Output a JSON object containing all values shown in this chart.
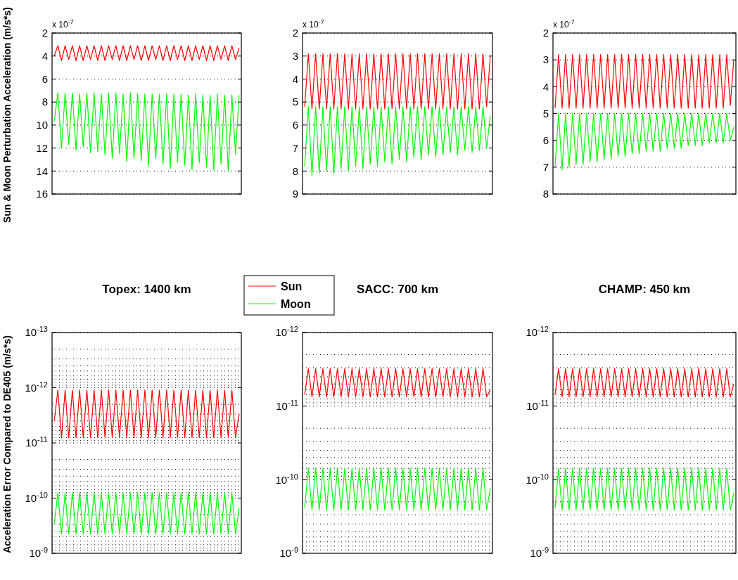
{
  "chart_data": [
    {
      "type": "line",
      "ylabel": "Sun & Moon Perturbation Acceleration (m/s*s)",
      "annotations": [
        "x 10$^{-7}$"
      ],
      "categories": [
        null,
        null,
        null,
        null,
        null,
        null,
        null,
        null,
        null,
        null,
        null,
        null,
        null,
        null,
        null,
        null,
        null,
        null,
        null,
        null,
        null,
        null,
        null,
        null,
        null,
        null,
        null,
        null,
        null,
        null,
        null,
        null,
        null,
        null,
        null,
        null,
        null,
        null,
        null,
        null,
        null,
        null,
        null,
        null,
        null,
        null,
        null,
        null,
        null,
        null,
        null,
        null
      ],
      "ylim": [
        16,
        2
      ],
      "yticks": [
        2,
        4,
        6,
        8,
        10,
        12,
        14,
        16
      ],
      "grid": "y",
      "tick_labels": "y",
      "series": [
        {
          "color": "#ff0000",
          "values": [
            4.0,
            3.1,
            4.4,
            3.1,
            4.3,
            3.1,
            4.4,
            3.1,
            4.4,
            3.1,
            4.3,
            3.1,
            4.4,
            3.1,
            4.4,
            3.1,
            4.3,
            3.1,
            4.4,
            3.1,
            4.4,
            3.1,
            4.3,
            3.1,
            4.4,
            3.1,
            4.4,
            3.1,
            4.3,
            3.1,
            4.4,
            3.1,
            4.4,
            3.1,
            4.3,
            3.1,
            4.4,
            3.1,
            4.4,
            3.1,
            4.3,
            3.1,
            4.4,
            3.1,
            4.4,
            3.1,
            4.3,
            3.1,
            4.4,
            3.1,
            4.3,
            3.3
          ]
        },
        {
          "color": "#00ff00",
          "values": [
            9.7,
            7.2,
            12.0,
            7.2,
            11.7,
            7.2,
            12.2,
            7.3,
            11.9,
            7.2,
            12.4,
            7.2,
            12.3,
            7.3,
            12.6,
            7.2,
            12.9,
            7.2,
            12.5,
            7.3,
            13.2,
            7.2,
            12.9,
            7.3,
            13.1,
            7.3,
            13.5,
            7.3,
            12.9,
            7.3,
            13.4,
            7.3,
            13.8,
            7.3,
            13.2,
            7.3,
            13.5,
            7.4,
            13.9,
            7.3,
            13.3,
            7.4,
            13.7,
            7.4,
            13.9,
            7.3,
            13.4,
            7.4,
            14.0,
            7.4,
            12.5,
            7.4
          ]
        }
      ]
    },
    {
      "type": "line",
      "annotations": [
        "x 10$^{-7}$"
      ],
      "categories": [
        null,
        null,
        null,
        null,
        null,
        null,
        null,
        null,
        null,
        null,
        null,
        null,
        null,
        null,
        null,
        null,
        null,
        null,
        null,
        null,
        null,
        null,
        null,
        null,
        null,
        null,
        null,
        null,
        null,
        null,
        null,
        null,
        null,
        null,
        null,
        null,
        null,
        null,
        null,
        null,
        null,
        null,
        null,
        null,
        null,
        null,
        null,
        null,
        null,
        null,
        null,
        null
      ],
      "ylim": [
        9,
        2
      ],
      "yticks": [
        2,
        3,
        4,
        5,
        6,
        7,
        8,
        9
      ],
      "grid": "y",
      "tick_labels": "y",
      "series": [
        {
          "color": "#ff0000",
          "values": [
            5.2,
            2.9,
            5.3,
            2.9,
            5.3,
            2.9,
            5.3,
            2.9,
            5.3,
            2.9,
            5.3,
            2.9,
            5.3,
            2.9,
            5.3,
            2.9,
            5.3,
            2.9,
            5.3,
            2.9,
            5.3,
            2.9,
            5.3,
            2.9,
            5.3,
            2.9,
            5.3,
            2.9,
            5.3,
            2.9,
            5.3,
            2.9,
            5.3,
            2.9,
            5.3,
            2.9,
            5.3,
            2.9,
            5.3,
            2.9,
            5.3,
            2.9,
            5.3,
            2.9,
            5.3,
            2.9,
            5.3,
            2.9,
            5.3,
            2.9,
            5.2,
            3.0
          ]
        },
        {
          "color": "#00ff00",
          "values": [
            7.8,
            5.2,
            8.2,
            5.2,
            8.1,
            5.2,
            8.0,
            5.2,
            8.1,
            5.2,
            7.9,
            5.2,
            8.0,
            5.2,
            7.8,
            5.2,
            7.9,
            5.2,
            7.7,
            5.2,
            7.8,
            5.2,
            7.6,
            5.2,
            7.7,
            5.2,
            7.5,
            5.2,
            7.6,
            5.2,
            7.4,
            5.2,
            7.5,
            5.2,
            7.3,
            5.2,
            7.4,
            5.2,
            7.3,
            5.2,
            7.2,
            5.2,
            7.3,
            5.2,
            7.1,
            5.2,
            7.2,
            5.2,
            7.1,
            5.2,
            7.0,
            5.6
          ]
        }
      ]
    },
    {
      "type": "line",
      "annotations": [
        "x 10$^{-7}$"
      ],
      "categories": [
        null,
        null,
        null,
        null,
        null,
        null,
        null,
        null,
        null,
        null,
        null,
        null,
        null,
        null,
        null,
        null,
        null,
        null,
        null,
        null,
        null,
        null,
        null,
        null,
        null,
        null,
        null,
        null,
        null,
        null,
        null,
        null,
        null,
        null,
        null,
        null,
        null,
        null,
        null,
        null,
        null,
        null,
        null,
        null,
        null,
        null,
        null,
        null,
        null,
        null,
        null,
        null
      ],
      "ylim": [
        8,
        2
      ],
      "yticks": [
        2,
        3,
        4,
        5,
        6,
        7,
        8
      ],
      "grid": "y",
      "tick_labels": "y",
      "series": [
        {
          "color": "#ff0000",
          "values": [
            4.8,
            2.8,
            4.8,
            2.8,
            4.8,
            2.8,
            4.8,
            2.8,
            4.8,
            2.8,
            4.8,
            2.8,
            4.8,
            2.8,
            4.8,
            2.8,
            4.8,
            2.8,
            4.8,
            2.8,
            4.8,
            2.8,
            4.8,
            2.8,
            4.8,
            2.8,
            4.8,
            2.8,
            4.8,
            2.8,
            4.8,
            2.8,
            4.8,
            2.8,
            4.8,
            2.8,
            4.8,
            2.8,
            4.8,
            2.8,
            4.8,
            2.8,
            4.8,
            2.8,
            4.8,
            2.8,
            4.8,
            2.8,
            4.8,
            2.8,
            4.7,
            3.0
          ]
        },
        {
          "color": "#00ff00",
          "values": [
            7.0,
            5.0,
            7.1,
            5.0,
            7.0,
            5.0,
            6.9,
            5.0,
            6.9,
            5.0,
            6.8,
            5.0,
            6.8,
            5.0,
            6.7,
            5.0,
            6.7,
            5.0,
            6.6,
            5.0,
            6.6,
            5.0,
            6.5,
            5.0,
            6.5,
            5.0,
            6.4,
            5.0,
            6.4,
            5.0,
            6.4,
            5.0,
            6.3,
            5.0,
            6.3,
            5.0,
            6.3,
            5.0,
            6.2,
            5.0,
            6.2,
            5.0,
            6.2,
            5.0,
            6.1,
            5.0,
            6.1,
            5.0,
            6.1,
            5.0,
            6.0,
            5.5
          ]
        }
      ]
    },
    {
      "type": "line",
      "title": "Topex: 1400 km",
      "ylabel": "Acceleration Error Compared to DE405 (m/s*s)",
      "legend": "top right",
      "log": "y",
      "categories": [
        null,
        null,
        null,
        null,
        null,
        null,
        null,
        null,
        null,
        null,
        null,
        null,
        null,
        null,
        null,
        null,
        null,
        null,
        null,
        null,
        null,
        null,
        null,
        null,
        null,
        null,
        null,
        null,
        null,
        null,
        null,
        null,
        null,
        null,
        null,
        null,
        null,
        null,
        null,
        null,
        null,
        null,
        null,
        null,
        null,
        null,
        null,
        null,
        null,
        null,
        null,
        null
      ],
      "ylim": [
        1e-09,
        1e-13
      ],
      "yticks": [
        {
          "value": 1e-13,
          "label": "10$^{-13}$"
        },
        {
          "value": 1e-12,
          "label": "10$^{-12}$"
        },
        {
          "value": 1e-11,
          "label": "10$^{-11}$"
        },
        {
          "value": 1e-10,
          "label": "10$^{-10}$"
        },
        {
          "value": 1e-09,
          "label": "10$^{-9}$"
        }
      ],
      "grid": "y",
      "tick_labels": "y",
      "series": [
        {
          "name": "Sun",
          "color": "#ff0000",
          "values": [
            4e-12,
            1.1e-12,
            8e-12,
            1.1e-12,
            8e-12,
            1.1e-12,
            8e-12,
            1.1e-12,
            8e-12,
            1.1e-12,
            8e-12,
            1.1e-12,
            8e-12,
            1.1e-12,
            8e-12,
            1.1e-12,
            8e-12,
            1.1e-12,
            8e-12,
            1.1e-12,
            8e-12,
            1.1e-12,
            8e-12,
            1.1e-12,
            8e-12,
            1.1e-12,
            8e-12,
            1.1e-12,
            8e-12,
            1.1e-12,
            8e-12,
            1.1e-12,
            8e-12,
            1.1e-12,
            8e-12,
            1.1e-12,
            8e-12,
            1.1e-12,
            8e-12,
            1.1e-12,
            8e-12,
            1.1e-12,
            8e-12,
            1.1e-12,
            8e-12,
            1.1e-12,
            8e-12,
            1.1e-12,
            8e-12,
            1.1e-12,
            8e-12,
            3e-12
          ]
        },
        {
          "name": "Moon",
          "color": "#00ff00",
          "values": [
            3e-10,
            8e-11,
            4.5e-10,
            8e-11,
            4.5e-10,
            8e-11,
            4.5e-10,
            8e-11,
            4.5e-10,
            8e-11,
            4.5e-10,
            8e-11,
            4.5e-10,
            8e-11,
            4.5e-10,
            8e-11,
            4.5e-10,
            8e-11,
            4.5e-10,
            8e-11,
            4.5e-10,
            8e-11,
            4.5e-10,
            8e-11,
            4.5e-10,
            8e-11,
            4.5e-10,
            8e-11,
            4.5e-10,
            8e-11,
            4.5e-10,
            8e-11,
            4.5e-10,
            8e-11,
            4.5e-10,
            8e-11,
            4.5e-10,
            8e-11,
            4.5e-10,
            8e-11,
            4.5e-10,
            8e-11,
            4.5e-10,
            8e-11,
            4.5e-10,
            8e-11,
            4.5e-10,
            8e-11,
            4.5e-10,
            8e-11,
            4.5e-10,
            1.5e-10
          ]
        }
      ]
    },
    {
      "type": "line",
      "title": "SACC: 700 km",
      "log": "y",
      "categories": [
        null,
        null,
        null,
        null,
        null,
        null,
        null,
        null,
        null,
        null,
        null,
        null,
        null,
        null,
        null,
        null,
        null,
        null,
        null,
        null,
        null,
        null,
        null,
        null,
        null,
        null,
        null,
        null,
        null,
        null,
        null,
        null,
        null,
        null,
        null,
        null,
        null,
        null,
        null,
        null,
        null,
        null,
        null,
        null,
        null,
        null,
        null,
        null,
        null,
        null,
        null,
        null
      ],
      "ylim": [
        1e-09,
        1e-12
      ],
      "yticks": [
        {
          "value": 1e-12,
          "label": "10$^{-12}$"
        },
        {
          "value": 1e-11,
          "label": "10$^{-11}$"
        },
        {
          "value": 1e-10,
          "label": "10$^{-10}$"
        },
        {
          "value": 1e-09,
          "label": "10$^{-9}$"
        }
      ],
      "grid": "y",
      "tick_labels": "y",
      "series": [
        {
          "color": "#ff0000",
          "values": [
            7e-12,
            3.1e-12,
            7.5e-12,
            3.1e-12,
            7.5e-12,
            3.1e-12,
            7.5e-12,
            3.1e-12,
            7.5e-12,
            3.1e-12,
            7.5e-12,
            3.1e-12,
            7.5e-12,
            3.1e-12,
            7.5e-12,
            3.1e-12,
            7.5e-12,
            3.1e-12,
            7.5e-12,
            3.1e-12,
            7.5e-12,
            3.1e-12,
            7.5e-12,
            3.1e-12,
            7.5e-12,
            3.1e-12,
            7.5e-12,
            3.1e-12,
            7.5e-12,
            3.1e-12,
            7.5e-12,
            3.1e-12,
            7.5e-12,
            3.1e-12,
            7.5e-12,
            3.1e-12,
            7.5e-12,
            3.1e-12,
            7.5e-12,
            3.1e-12,
            7.5e-12,
            3.1e-12,
            7.5e-12,
            3.1e-12,
            7.5e-12,
            3.1e-12,
            7.5e-12,
            3.1e-12,
            7.5e-12,
            3.1e-12,
            7.5e-12,
            6e-12
          ]
        },
        {
          "color": "#00ff00",
          "values": [
            2.4e-10,
            7e-11,
            2.6e-10,
            7e-11,
            2.6e-10,
            7e-11,
            2.6e-10,
            7e-11,
            2.6e-10,
            7e-11,
            2.6e-10,
            7e-11,
            2.6e-10,
            7e-11,
            2.6e-10,
            7e-11,
            2.6e-10,
            7e-11,
            2.6e-10,
            7e-11,
            2.6e-10,
            7e-11,
            2.6e-10,
            7e-11,
            2.6e-10,
            7e-11,
            2.6e-10,
            7e-11,
            2.6e-10,
            7e-11,
            2.6e-10,
            7e-11,
            2.6e-10,
            7e-11,
            2.6e-10,
            7e-11,
            2.6e-10,
            7e-11,
            2.6e-10,
            7e-11,
            2.6e-10,
            7e-11,
            2.6e-10,
            7e-11,
            2.6e-10,
            7e-11,
            2.6e-10,
            7e-11,
            2.6e-10,
            7e-11,
            2.6e-10,
            1.3e-10
          ]
        }
      ]
    },
    {
      "type": "line",
      "title": "CHAMP: 450 km",
      "log": "y",
      "categories": [
        null,
        null,
        null,
        null,
        null,
        null,
        null,
        null,
        null,
        null,
        null,
        null,
        null,
        null,
        null,
        null,
        null,
        null,
        null,
        null,
        null,
        null,
        null,
        null,
        null,
        null,
        null,
        null,
        null,
        null,
        null,
        null,
        null,
        null,
        null,
        null,
        null,
        null,
        null,
        null,
        null,
        null,
        null,
        null,
        null,
        null,
        null,
        null,
        null,
        null,
        null,
        null
      ],
      "ylim": [
        1e-09,
        1e-12
      ],
      "yticks": [
        {
          "value": 1e-12,
          "label": "10$^{-12}$"
        },
        {
          "value": 1e-11,
          "label": "10$^{-11}$"
        },
        {
          "value": 1e-10,
          "label": "10$^{-10}$"
        },
        {
          "value": 1e-09,
          "label": "10$^{-9}$"
        }
      ],
      "grid": "y",
      "tick_labels": "y",
      "series": [
        {
          "color": "#ff0000",
          "values": [
            7e-12,
            3.1e-12,
            7.5e-12,
            3.1e-12,
            7.5e-12,
            3.1e-12,
            7.5e-12,
            3.1e-12,
            7.5e-12,
            3.1e-12,
            7.5e-12,
            3.1e-12,
            7.5e-12,
            3.1e-12,
            7.5e-12,
            3.1e-12,
            7.5e-12,
            3.1e-12,
            7.5e-12,
            3.1e-12,
            7.5e-12,
            3.1e-12,
            7.5e-12,
            3.1e-12,
            7.5e-12,
            3.1e-12,
            7.5e-12,
            3.1e-12,
            7.5e-12,
            3.1e-12,
            7.5e-12,
            3.1e-12,
            7.5e-12,
            3.1e-12,
            7.5e-12,
            3.1e-12,
            7.5e-12,
            3.1e-12,
            7.5e-12,
            3.1e-12,
            7.5e-12,
            3.1e-12,
            7.5e-12,
            3.1e-12,
            7.5e-12,
            3.1e-12,
            7.5e-12,
            3.1e-12,
            7.5e-12,
            3.1e-12,
            7.5e-12,
            5e-12
          ]
        },
        {
          "color": "#00ff00",
          "values": [
            2.4e-10,
            7e-11,
            2.6e-10,
            7e-11,
            2.6e-10,
            7e-11,
            2.6e-10,
            7e-11,
            2.6e-10,
            7e-11,
            2.6e-10,
            7e-11,
            2.6e-10,
            7e-11,
            2.6e-10,
            7e-11,
            2.6e-10,
            7e-11,
            2.6e-10,
            7e-11,
            2.6e-10,
            7e-11,
            2.6e-10,
            7e-11,
            2.6e-10,
            7e-11,
            2.6e-10,
            7e-11,
            2.6e-10,
            7e-11,
            2.6e-10,
            7e-11,
            2.6e-10,
            7e-11,
            2.6e-10,
            7e-11,
            2.6e-10,
            7e-11,
            2.6e-10,
            7e-11,
            2.6e-10,
            7e-11,
            2.6e-10,
            7e-11,
            2.6e-10,
            7e-11,
            2.6e-10,
            7e-11,
            2.6e-10,
            7e-11,
            2.6e-10,
            1.5e-10
          ]
        }
      ]
    }
  ]
}
